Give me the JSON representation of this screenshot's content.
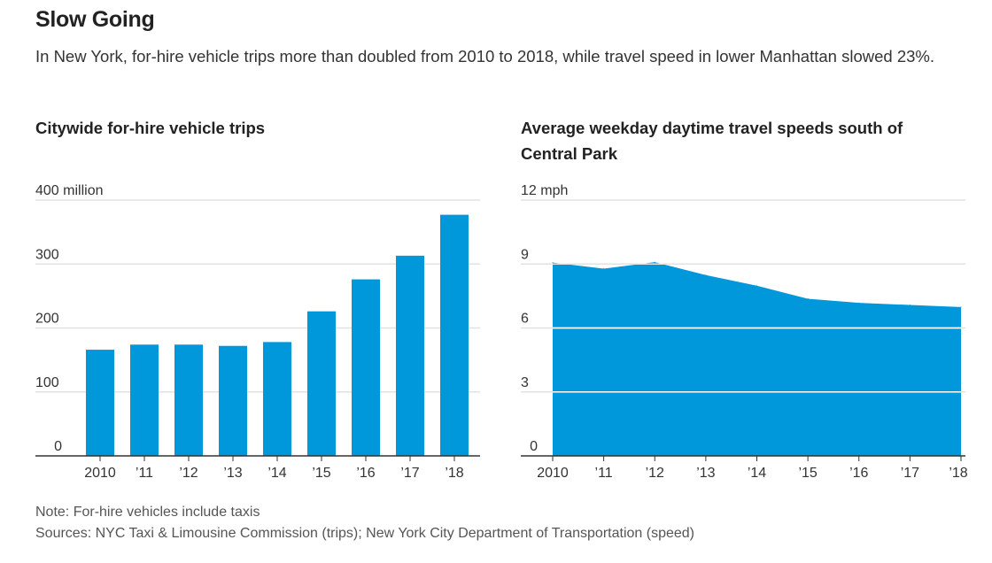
{
  "header": {
    "title": "Slow Going",
    "subtitle": "In New York, for-hire vehicle trips more than doubled from 2010 to 2018, while travel speed in lower Manhattan slowed 23%."
  },
  "colors": {
    "fill": "#0098db",
    "grid": "#e2e2e2",
    "axis": "#333333"
  },
  "footer": {
    "note": "Note: For-hire vehicles include taxis",
    "sources": "Sources: NYC Taxi & Limousine Commission (trips); New York City Department of Transportation (speed)"
  },
  "chart_data": [
    {
      "type": "bar",
      "title": "Citywide for-hire vehicle trips",
      "categories": [
        "2010",
        "’11",
        "’12",
        "’13",
        "’14",
        "’15",
        "’16",
        "’17",
        "’18"
      ],
      "values": [
        166,
        174,
        174,
        172,
        178,
        226,
        276,
        313,
        377
      ],
      "unit": "million",
      "ylim": [
        0,
        400
      ],
      "yticks": [
        0,
        100,
        200,
        300,
        400
      ],
      "ytick_labels": [
        "0",
        "100",
        "200",
        "300",
        "400 million"
      ],
      "grid": true,
      "xlabel": "",
      "ylabel": ""
    },
    {
      "type": "area",
      "title": "Average weekday daytime travel speeds south of Central Park",
      "categories": [
        "2010",
        "’11",
        "’12",
        "’13",
        "’14",
        "’15",
        "’16",
        "’17",
        "’18"
      ],
      "values": [
        9.07,
        8.78,
        9.09,
        8.48,
        7.98,
        7.37,
        7.18,
        7.08,
        6.98
      ],
      "unit": "mph",
      "ylim": [
        0,
        12
      ],
      "yticks": [
        0,
        3,
        6,
        9,
        12
      ],
      "ytick_labels": [
        "0",
        "3",
        "6",
        "9",
        "12 mph"
      ],
      "grid": true,
      "xlabel": "",
      "ylabel": ""
    }
  ]
}
